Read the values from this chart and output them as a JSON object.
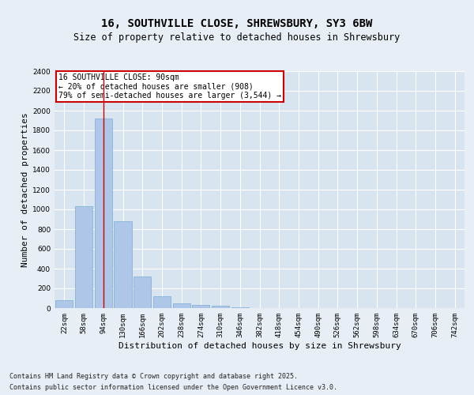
{
  "title_line1": "16, SOUTHVILLE CLOSE, SHREWSBURY, SY3 6BW",
  "title_line2": "Size of property relative to detached houses in Shrewsbury",
  "xlabel": "Distribution of detached houses by size in Shrewsbury",
  "ylabel": "Number of detached properties",
  "categories": [
    "22sqm",
    "58sqm",
    "94sqm",
    "130sqm",
    "166sqm",
    "202sqm",
    "238sqm",
    "274sqm",
    "310sqm",
    "346sqm",
    "382sqm",
    "418sqm",
    "454sqm",
    "490sqm",
    "526sqm",
    "562sqm",
    "598sqm",
    "634sqm",
    "670sqm",
    "706sqm",
    "742sqm"
  ],
  "values": [
    80,
    1030,
    1920,
    880,
    320,
    120,
    50,
    35,
    25,
    10,
    3,
    1,
    0,
    0,
    0,
    0,
    0,
    0,
    0,
    0,
    0
  ],
  "bar_color": "#aec6e8",
  "bar_edge_color": "#7aaed4",
  "vline_x": 2,
  "vline_color": "#cc0000",
  "annotation_text": "16 SOUTHVILLE CLOSE: 90sqm\n← 20% of detached houses are smaller (908)\n79% of semi-detached houses are larger (3,544) →",
  "annotation_box_color": "#ffffff",
  "annotation_box_edge": "#cc0000",
  "ylim": [
    0,
    2400
  ],
  "yticks": [
    0,
    200,
    400,
    600,
    800,
    1000,
    1200,
    1400,
    1600,
    1800,
    2000,
    2200,
    2400
  ],
  "background_color": "#e8eef5",
  "plot_background": "#d8e4f0",
  "footer_line1": "Contains HM Land Registry data © Crown copyright and database right 2025.",
  "footer_line2": "Contains public sector information licensed under the Open Government Licence v3.0.",
  "title_fontsize": 10,
  "subtitle_fontsize": 8.5,
  "axis_label_fontsize": 8,
  "tick_fontsize": 6.5,
  "annotation_fontsize": 7,
  "footer_fontsize": 6
}
